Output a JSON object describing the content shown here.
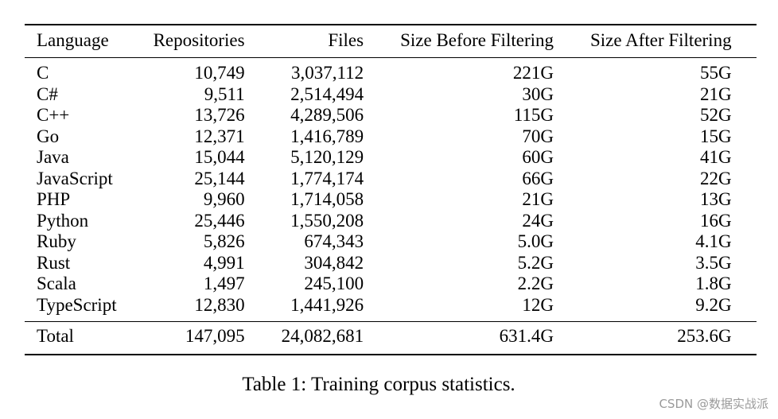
{
  "table": {
    "headers": [
      "Language",
      "Repositories",
      "Files",
      "Size Before Filtering",
      "Size After Filtering"
    ],
    "rows": [
      [
        "C",
        "10,749",
        "3,037,112",
        "221G",
        "55G"
      ],
      [
        "C#",
        "9,511",
        "2,514,494",
        "30G",
        "21G"
      ],
      [
        "C++",
        "13,726",
        "4,289,506",
        "115G",
        "52G"
      ],
      [
        "Go",
        "12,371",
        "1,416,789",
        "70G",
        "15G"
      ],
      [
        "Java",
        "15,044",
        "5,120,129",
        "60G",
        "41G"
      ],
      [
        "JavaScript",
        "25,144",
        "1,774,174",
        "66G",
        "22G"
      ],
      [
        "PHP",
        "9,960",
        "1,714,058",
        "21G",
        "13G"
      ],
      [
        "Python",
        "25,446",
        "1,550,208",
        "24G",
        "16G"
      ],
      [
        "Ruby",
        "5,826",
        "674,343",
        "5.0G",
        "4.1G"
      ],
      [
        "Rust",
        "4,991",
        "304,842",
        "5.2G",
        "3.5G"
      ],
      [
        "Scala",
        "1,497",
        "245,100",
        "2.2G",
        "1.8G"
      ],
      [
        "TypeScript",
        "12,830",
        "1,441,926",
        "12G",
        "9.2G"
      ]
    ],
    "total": [
      "Total",
      "147,095",
      "24,082,681",
      "631.4G",
      "253.6G"
    ]
  },
  "caption": "Table 1: Training corpus statistics.",
  "watermark": "CSDN @数据实战派"
}
